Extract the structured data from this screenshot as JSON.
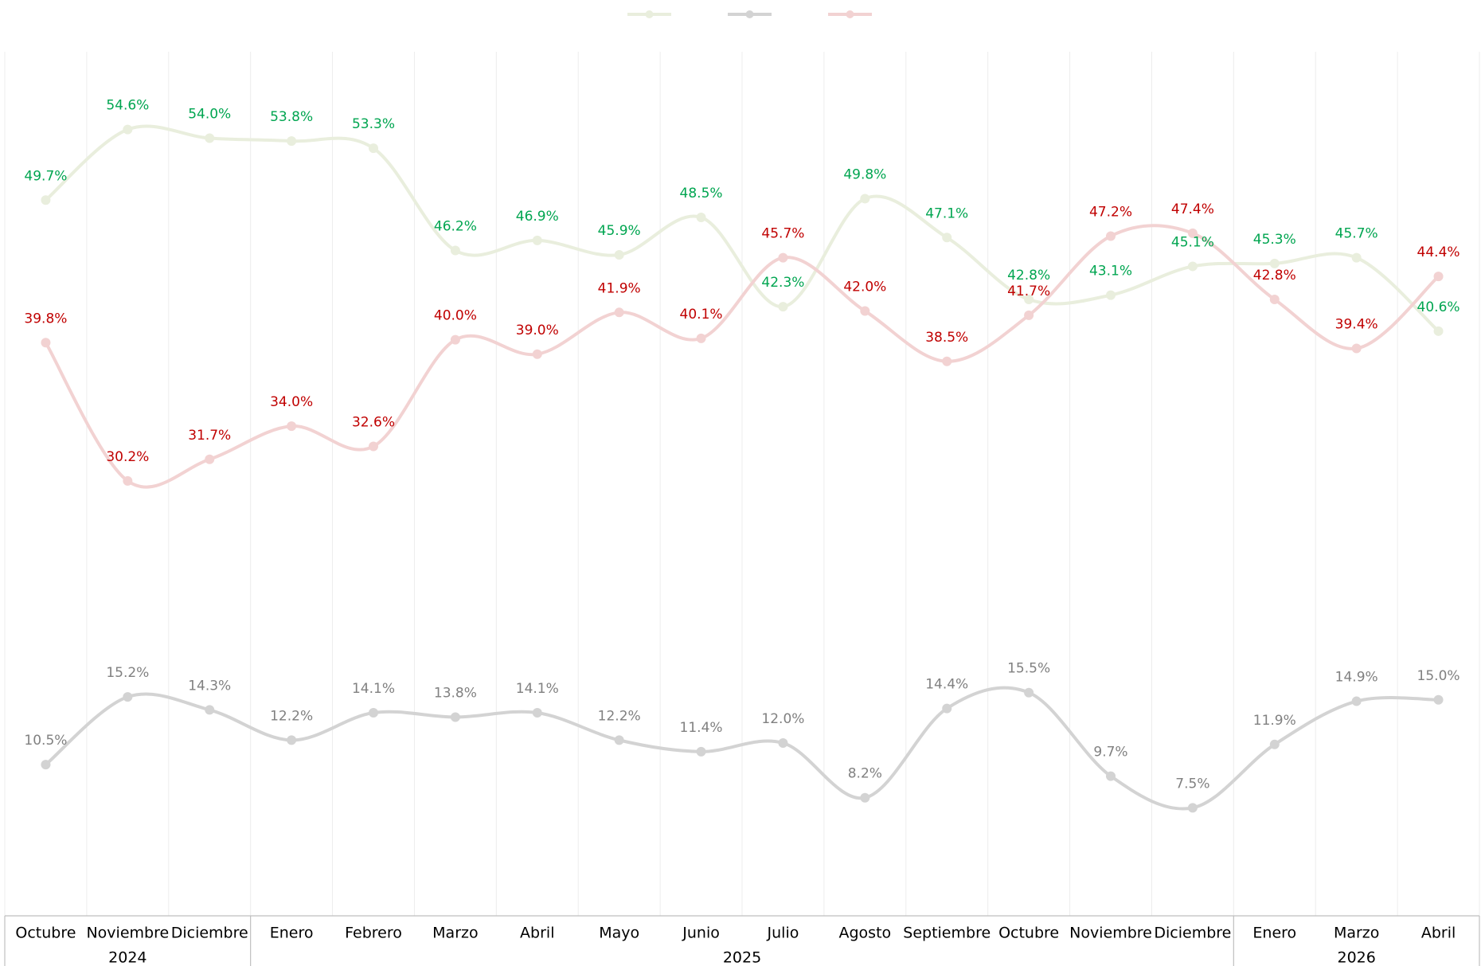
{
  "chart_data": {
    "type": "line",
    "category_groups": [
      {
        "label": "2024",
        "categories": [
          "Octubre",
          "Noviembre",
          "Diciembre"
        ]
      },
      {
        "label": "2025",
        "categories": [
          "Enero",
          "Febrero",
          "Marzo",
          "Abril",
          "Mayo",
          "Junio",
          "Julio",
          "Agosto",
          "Septiembre",
          "Octubre",
          "Noviembre",
          "Diciembre"
        ]
      },
      {
        "label": "2026",
        "categories": [
          "Enero",
          "Marzo",
          "Abril"
        ]
      }
    ],
    "series": [
      {
        "color": "#e9eedd",
        "label_color": "#00a550",
        "values": [
          49.7,
          54.6,
          54.0,
          53.8,
          53.3,
          46.2,
          46.9,
          45.9,
          48.5,
          42.3,
          49.8,
          47.1,
          42.8,
          43.1,
          45.1,
          45.3,
          45.7,
          40.6
        ],
        "value_labels": [
          "49.7%",
          "54.6%",
          "54.0%",
          "53.8%",
          "53.3%",
          "46.2%",
          "46.9%",
          "45.9%",
          "48.5%",
          "42.3%",
          "49.8%",
          "47.1%",
          "42.8%",
          "43.1%",
          "45.1%",
          "45.3%",
          "45.7%",
          "40.6%"
        ]
      },
      {
        "color": "#d3d3d3",
        "label_color": "#808080",
        "values": [
          10.5,
          15.2,
          14.3,
          12.2,
          14.1,
          13.8,
          14.1,
          12.2,
          11.4,
          12.0,
          8.2,
          14.4,
          15.5,
          9.7,
          7.5,
          11.9,
          14.9,
          15.0
        ],
        "value_labels": [
          "10.5%",
          "15.2%",
          "14.3%",
          "12.2%",
          "14.1%",
          "13.8%",
          "14.1%",
          "12.2%",
          "11.4%",
          "12.0%",
          "8.2%",
          "14.4%",
          "15.5%",
          "9.7%",
          "7.5%",
          "11.9%",
          "14.9%",
          "15.0%"
        ]
      },
      {
        "color": "#f2d2d2",
        "label_color": "#c00000",
        "values": [
          39.8,
          30.2,
          31.7,
          34.0,
          32.6,
          40.0,
          39.0,
          41.9,
          40.1,
          45.7,
          42.0,
          38.5,
          41.7,
          47.2,
          47.4,
          42.8,
          39.4,
          44.4
        ],
        "value_labels": [
          "39.8%",
          "30.2%",
          "31.7%",
          "34.0%",
          "32.6%",
          "40.0%",
          "39.0%",
          "41.9%",
          "40.1%",
          "45.7%",
          "42.0%",
          "38.5%",
          "41.7%",
          "47.2%",
          "47.4%",
          "42.8%",
          "39.4%",
          "44.4%"
        ]
      }
    ],
    "ylim": [
      0,
      60
    ],
    "smooth": true,
    "grid": "vertical",
    "legend": "top"
  }
}
